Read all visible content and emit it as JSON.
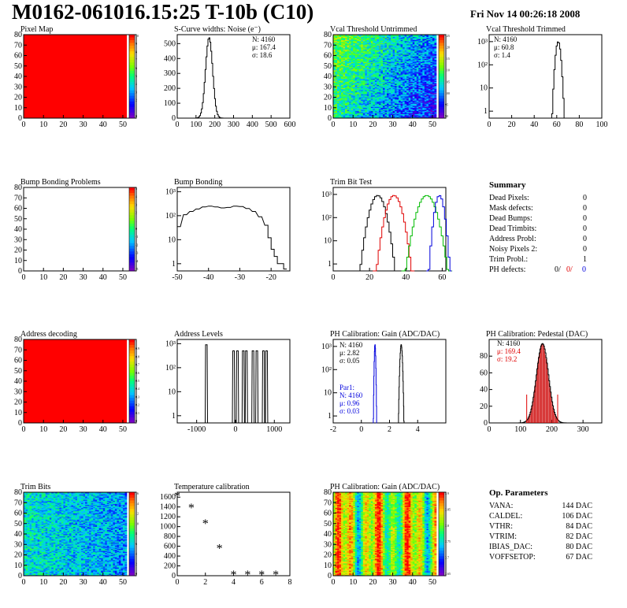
{
  "header": {
    "title": "M0162-061016.15:25 T-10b (C10)",
    "date": "Fri Nov 14 00:26:18 2008"
  },
  "colors": {
    "panel_fill": "#ff0000",
    "hist_line": "#000000",
    "red_series": "#e00000",
    "green_series": "#00bb00",
    "blue_series": "#0000dd",
    "hatch": "#cc0000"
  },
  "chart_data": [
    {
      "id": "pixel-map",
      "type": "heatmap",
      "title": "Pixel Map",
      "x_ticks": [
        "0",
        "10",
        "20",
        "30",
        "40",
        "50"
      ],
      "y_ticks": [
        "0",
        "10",
        "20",
        "30",
        "40",
        "50",
        "60",
        "70",
        "80"
      ],
      "xlim": [
        0,
        52
      ],
      "ylim": [
        0,
        80
      ],
      "fill": "uniform",
      "palette_ticks": [
        "10",
        "9",
        "8",
        "7",
        "6",
        "5",
        "4",
        "3",
        "2",
        "1",
        "0"
      ]
    },
    {
      "id": "scurve-noise",
      "type": "line",
      "title": "S-Curve widths: Noise (e⁻)",
      "x_ticks": [
        "0",
        "100",
        "200",
        "300",
        "400",
        "500",
        "600"
      ],
      "xlim": [
        0,
        600
      ],
      "y_ticks": [
        "0",
        "100",
        "200",
        "300",
        "400",
        "500"
      ],
      "ylim": [
        0,
        560
      ],
      "log": false,
      "stats": [
        "N: 4160",
        "μ: 167.4",
        "σ: 18.6"
      ],
      "peak_x": 167.4,
      "peak_y": 540,
      "width": 18.6
    },
    {
      "id": "vcal-untrimmed",
      "type": "heatmap",
      "title": "Vcal Threshold Untrimmed",
      "x_ticks": [
        "0",
        "10",
        "20",
        "30",
        "40",
        "50"
      ],
      "y_ticks": [
        "0",
        "10",
        "20",
        "30",
        "40",
        "50",
        "60",
        "70",
        "80"
      ],
      "xlim": [
        0,
        52
      ],
      "ylim": [
        0,
        80
      ],
      "fill": "gradient",
      "palette_ticks": [
        "125",
        "120",
        "115",
        "110",
        "105",
        "100",
        "95",
        "90"
      ]
    },
    {
      "id": "vcal-trimmed",
      "type": "line",
      "title": "Vcal Threshold Trimmed",
      "x_ticks": [
        "0",
        "20",
        "40",
        "60",
        "80",
        "100"
      ],
      "xlim": [
        0,
        100
      ],
      "y_ticks": [
        "1",
        "10",
        "10²",
        "10³"
      ],
      "log": true,
      "ylim": [
        0.5,
        2000
      ],
      "stats": [
        "N: 4160",
        "μ: 60.8",
        "σ:  1.4"
      ],
      "peak_x": 60.8,
      "peak_y": 1000,
      "width": 1.4
    },
    {
      "id": "bump-bonding-problems",
      "type": "heatmap",
      "title": "Bump Bonding Problems",
      "x_ticks": [
        "0",
        "10",
        "20",
        "30",
        "40",
        "50"
      ],
      "y_ticks": [
        "0",
        "10",
        "20",
        "30",
        "40",
        "50",
        "60",
        "70",
        "80"
      ],
      "xlim": [
        0,
        52
      ],
      "ylim": [
        0,
        80
      ],
      "fill": "empty",
      "palette_ticks": [
        "5",
        "4",
        "3",
        "2",
        "1",
        "0",
        "-1",
        "-2",
        "-3",
        "-4",
        "-5"
      ]
    },
    {
      "id": "bump-bonding",
      "type": "line",
      "title": "Bump Bonding",
      "x_ticks": [
        "-50",
        "-40",
        "-30",
        "-20"
      ],
      "xlim": [
        -50,
        -14
      ],
      "y_ticks": [
        "1",
        "10",
        "10²",
        "10³"
      ],
      "log": true,
      "ylim": [
        0.5,
        1500
      ]
    },
    {
      "id": "trim-bit-test",
      "type": "line",
      "title": "Trim Bit Test",
      "x_ticks": [
        "0",
        "20",
        "40",
        "60"
      ],
      "xlim": [
        0,
        62
      ],
      "y_ticks": [
        "1",
        "10",
        "10²",
        "10³"
      ],
      "log": true,
      "ylim": [
        0.5,
        2000
      ],
      "series": [
        {
          "color": "#000000",
          "center": 24,
          "width": 2.5
        },
        {
          "color": "#e00000",
          "center": 33,
          "width": 2.5
        },
        {
          "color": "#00bb00",
          "center": 51,
          "width": 3
        },
        {
          "color": "#0000dd",
          "center": 58,
          "width": 1.5
        }
      ]
    },
    {
      "id": "summary",
      "type": "table",
      "title": "Summary",
      "rows": [
        {
          "label": "Dead Pixels:",
          "value": "0"
        },
        {
          "label": "Mask defects:",
          "value": "0"
        },
        {
          "label": "Dead Bumps:",
          "value": "0"
        },
        {
          "label": "Dead Trimbits:",
          "value": "0"
        },
        {
          "label": "Address Probl:",
          "value": "0"
        },
        {
          "label": "Noisy Pixels 2:",
          "value": "0"
        },
        {
          "label": "Trim Probl.:",
          "value": "1"
        }
      ],
      "ph_defects": {
        "label": "PH defects:",
        "black": "0/",
        "red": "0/",
        "blue": "0"
      }
    },
    {
      "id": "address-decoding",
      "type": "heatmap",
      "title": "Address decoding",
      "x_ticks": [
        "0",
        "10",
        "20",
        "30",
        "40",
        "50"
      ],
      "y_ticks": [
        "0",
        "10",
        "20",
        "30",
        "40",
        "50",
        "60",
        "70",
        "80"
      ],
      "xlim": [
        0,
        52
      ],
      "ylim": [
        0,
        80
      ],
      "fill": "uniform",
      "palette_ticks": [
        "1",
        "0.9",
        "0.8",
        "0.7",
        "0.6",
        "0.5",
        "0.4",
        "0.3",
        "0.2",
        "0.1",
        "0"
      ]
    },
    {
      "id": "address-levels",
      "type": "line",
      "title": "Address Levels",
      "x_ticks": [
        "-1000",
        "0",
        "1000"
      ],
      "xlim": [
        -1500,
        1400
      ],
      "y_ticks": [
        "1",
        "10",
        "10²",
        "10³"
      ],
      "log": true,
      "ylim": [
        0.5,
        1500
      ],
      "spikes": [
        -750,
        -50,
        50,
        200,
        280,
        450,
        550,
        720,
        800
      ]
    },
    {
      "id": "ph-gain",
      "type": "line",
      "title": "PH Calibration: Gain (ADC/DAC)",
      "x_ticks": [
        "-2",
        "0",
        "2",
        "4"
      ],
      "xlim": [
        -2,
        6
      ],
      "y_ticks": [
        "1",
        "10",
        "10²",
        "10³"
      ],
      "log": true,
      "ylim": [
        0.5,
        2000
      ],
      "stats": [
        "N: 4160",
        "μ: 2.82",
        "σ: 0.05"
      ],
      "par_stats": [
        "Par1:",
        "N: 4160",
        "μ: 0.96",
        "σ: 0.03"
      ],
      "series": [
        {
          "color": "#000000",
          "center": 2.82,
          "width": 0.05
        },
        {
          "color": "#0000dd",
          "center": 0.96,
          "width": 0.03
        }
      ]
    },
    {
      "id": "ph-pedestal",
      "type": "line",
      "title": "PH Calibration: Pedestal (DAC)",
      "x_ticks": [
        "0",
        "100",
        "200",
        "300"
      ],
      "xlim": [
        0,
        360
      ],
      "y_ticks": [
        "0",
        "20",
        "40",
        "60",
        "80"
      ],
      "ylim": [
        0,
        100
      ],
      "log": false,
      "stats": [
        "N: 4160",
        "μ: 169.4",
        "σ: 19.2"
      ],
      "peak_x": 169.4,
      "peak_y": 95,
      "width": 19.2
    },
    {
      "id": "trim-bits",
      "type": "heatmap",
      "title": "Trim Bits",
      "x_ticks": [
        "0",
        "10",
        "20",
        "30",
        "40",
        "50"
      ],
      "y_ticks": [
        "0",
        "10",
        "20",
        "30",
        "40",
        "50",
        "60",
        "70",
        "80"
      ],
      "xlim": [
        0,
        52
      ],
      "ylim": [
        0,
        80
      ],
      "fill": "trim",
      "palette_ticks": [
        "16",
        "14",
        "12",
        "10",
        "8",
        "6",
        "4",
        "2",
        "0"
      ]
    },
    {
      "id": "temperature-calibration",
      "type": "scatter",
      "title": "Temperature calibration",
      "x_ticks": [
        "0",
        "2",
        "4",
        "6",
        "8"
      ],
      "xlim": [
        0,
        8
      ],
      "y_ticks": [
        "0",
        "200",
        "400",
        "600",
        "800",
        "1000",
        "1200",
        "1400",
        "1600"
      ],
      "ylim": [
        0,
        1700
      ],
      "x": [
        0,
        1,
        2,
        3,
        4,
        5,
        6,
        7
      ],
      "y": [
        1600,
        1360,
        1040,
        540,
        0,
        0,
        0,
        0
      ]
    },
    {
      "id": "ph-gain-map",
      "type": "heatmap",
      "title": "PH Calibration: Gain (ADC/DAC)",
      "x_ticks": [
        "0",
        "10",
        "20",
        "30",
        "40",
        "50"
      ],
      "y_ticks": [
        "0",
        "10",
        "20",
        "30",
        "40",
        "50",
        "60",
        "70",
        "80"
      ],
      "xlim": [
        0,
        52
      ],
      "ylim": [
        0,
        80
      ],
      "fill": "columns",
      "palette_ticks": [
        "2.9",
        "2.85",
        "2.8",
        "2.75",
        "2.7",
        "2.65"
      ]
    },
    {
      "id": "op-parameters",
      "type": "table",
      "title": "Op. Parameters",
      "rows": [
        {
          "label": "VANA:",
          "value": "144 DAC"
        },
        {
          "label": "CALDEL:",
          "value": "106 DAC"
        },
        {
          "label": "VTHR:",
          "value": "84 DAC"
        },
        {
          "label": "VTRIM:",
          "value": "82 DAC"
        },
        {
          "label": "IBIAS_DAC:",
          "value": "80 DAC"
        },
        {
          "label": "VOFFSETOP:",
          "value": "67 DAC"
        }
      ]
    }
  ]
}
